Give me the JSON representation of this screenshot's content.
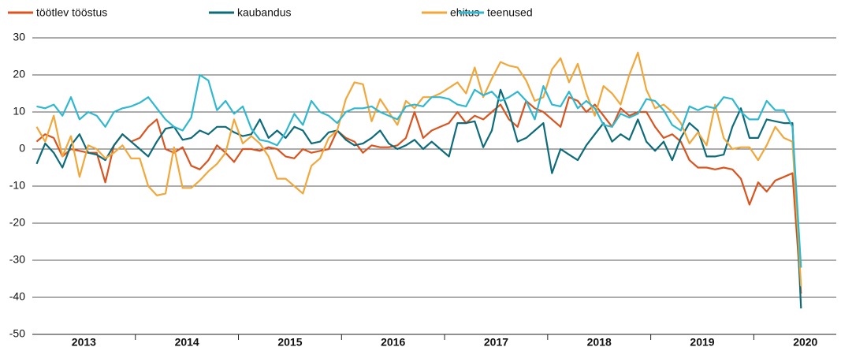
{
  "chart_data": {
    "type": "line",
    "x": [
      2013.042,
      2013.125,
      2013.208,
      2013.292,
      2013.375,
      2013.458,
      2013.542,
      2013.625,
      2013.708,
      2013.792,
      2013.875,
      2013.958,
      2014.042,
      2014.125,
      2014.208,
      2014.292,
      2014.375,
      2014.458,
      2014.542,
      2014.625,
      2014.708,
      2014.792,
      2014.875,
      2014.958,
      2015.042,
      2015.125,
      2015.208,
      2015.292,
      2015.375,
      2015.458,
      2015.542,
      2015.625,
      2015.708,
      2015.792,
      2015.875,
      2015.958,
      2016.042,
      2016.125,
      2016.208,
      2016.292,
      2016.375,
      2016.458,
      2016.542,
      2016.625,
      2016.708,
      2016.792,
      2016.875,
      2016.958,
      2017.042,
      2017.125,
      2017.208,
      2017.292,
      2017.375,
      2017.458,
      2017.542,
      2017.625,
      2017.708,
      2017.792,
      2017.875,
      2017.958,
      2018.042,
      2018.125,
      2018.208,
      2018.292,
      2018.375,
      2018.458,
      2018.542,
      2018.625,
      2018.708,
      2018.792,
      2018.875,
      2018.958,
      2019.042,
      2019.125,
      2019.208,
      2019.292,
      2019.375,
      2019.458,
      2019.542,
      2019.625,
      2019.708,
      2019.792,
      2019.875,
      2019.958,
      2020.042,
      2020.125,
      2020.208,
      2020.292,
      2020.375,
      2020.458
    ],
    "series": [
      {
        "name": "töötlev tööstus",
        "color": "#d9541e",
        "values": [
          2,
          4,
          3,
          -2,
          0,
          -0.5,
          -1,
          -1,
          -9,
          1,
          4,
          2,
          3,
          6,
          8,
          0,
          -1,
          0.5,
          -4.5,
          -5.5,
          -3,
          1,
          -1,
          -3.5,
          0,
          0,
          -0.5,
          0.5,
          0,
          -2,
          -2.5,
          0,
          -1,
          -0.5,
          0,
          5,
          3,
          2,
          -1,
          1,
          0.5,
          0.5,
          1,
          3,
          10,
          3,
          5,
          6,
          7,
          10,
          7,
          9,
          8,
          10,
          12,
          8,
          6,
          13,
          11,
          10,
          8,
          6,
          14,
          13,
          10,
          12,
          9,
          6,
          11,
          9,
          10,
          10,
          6,
          3,
          4,
          2,
          -3,
          -5,
          -5,
          -5.5,
          -5,
          -5.5,
          -8,
          -15,
          -9,
          -11.5,
          -8.5,
          -7.5,
          -6.5,
          -39
        ]
      },
      {
        "name": "kaubandus",
        "color": "#0d6b7a",
        "values": [
          -4,
          1.5,
          -1,
          -5,
          1,
          4,
          -1,
          -1.5,
          -3,
          1,
          4,
          2,
          0,
          -2,
          2,
          5.5,
          6,
          2.5,
          3,
          5,
          4,
          6,
          6,
          4.5,
          3.5,
          4,
          8,
          3,
          5,
          3,
          6,
          5,
          1.5,
          2,
          4.5,
          5,
          2.5,
          1,
          1.5,
          3,
          5,
          1.5,
          0,
          1,
          2.5,
          0,
          2,
          0,
          -2,
          7,
          7,
          7.5,
          0.5,
          5,
          16,
          10,
          2,
          3,
          5,
          7,
          -6.5,
          0,
          -1.5,
          -3,
          1,
          4,
          7,
          2,
          4,
          2.5,
          8,
          2,
          -0.5,
          2,
          -3,
          3,
          7,
          5,
          -2,
          -2,
          -1.5,
          6,
          11,
          3,
          3,
          8,
          7.5,
          7,
          7,
          -43
        ]
      },
      {
        "name": "ehitus",
        "color": "#f2a73a",
        "values": [
          6,
          2,
          9,
          -2,
          3.5,
          -7.5,
          1,
          0,
          -2.5,
          -1,
          1,
          -2.5,
          -2.5,
          -10,
          -12.5,
          -12,
          0.5,
          -10.5,
          -10.5,
          -8.5,
          -6,
          -4,
          -1,
          8,
          1.5,
          3.5,
          1.5,
          -2,
          -8,
          -8,
          -10,
          -12,
          -4.5,
          -2.5,
          3,
          5,
          13.5,
          18,
          17.5,
          7.5,
          13.5,
          10,
          6.5,
          13,
          11,
          14,
          14,
          15,
          16.5,
          18,
          15,
          22,
          14,
          19,
          23.5,
          22.5,
          22,
          18.5,
          13,
          14,
          21.5,
          24.5,
          18,
          23,
          15,
          9,
          17,
          15,
          12,
          20,
          26,
          16,
          11,
          12,
          10,
          7,
          1.5,
          4.5,
          1,
          12,
          3,
          0,
          0.5,
          0.5,
          -3,
          1,
          6,
          3,
          2,
          -37
        ]
      },
      {
        "name": "teenused",
        "color": "#2fb8d0",
        "values": [
          11.5,
          11,
          12,
          9,
          14,
          8,
          10,
          9,
          6,
          10,
          11,
          11.5,
          12.5,
          14,
          11,
          8,
          6,
          5,
          8.5,
          20,
          18.5,
          10.5,
          13,
          9.5,
          11.5,
          5.5,
          2.5,
          2,
          1,
          4.5,
          9.5,
          6.5,
          13,
          10,
          9,
          7,
          10,
          11,
          11,
          11.5,
          10,
          9,
          8,
          11.5,
          12,
          11.5,
          14,
          14,
          13.5,
          12,
          11.5,
          16,
          14.5,
          15.5,
          13,
          14,
          15.5,
          13,
          8,
          17,
          12,
          11.5,
          15.5,
          11,
          13,
          11,
          6.5,
          6,
          9.5,
          8.5,
          9.5,
          13.5,
          13,
          10.5,
          6.5,
          5,
          11.5,
          10.5,
          11.5,
          11,
          14,
          13.5,
          10,
          8,
          8,
          13,
          10.5,
          10.5,
          6,
          -32
        ]
      }
    ],
    "xlim": [
      2013,
      2020.8
    ],
    "xticks": [
      {
        "value": 2013.5,
        "label": "2013"
      },
      {
        "value": 2014.5,
        "label": "2014"
      },
      {
        "value": 2015.5,
        "label": "2015"
      },
      {
        "value": 2016.5,
        "label": "2016"
      },
      {
        "value": 2017.5,
        "label": "2017"
      },
      {
        "value": 2018.5,
        "label": "2018"
      },
      {
        "value": 2019.5,
        "label": "2019"
      },
      {
        "value": 2020.5,
        "label": "2020"
      }
    ],
    "ylim": [
      -50,
      30
    ],
    "yticks": [
      30,
      20,
      10,
      0,
      -10,
      -20,
      -30,
      -40,
      -50
    ],
    "grid": true,
    "legend": "top"
  }
}
